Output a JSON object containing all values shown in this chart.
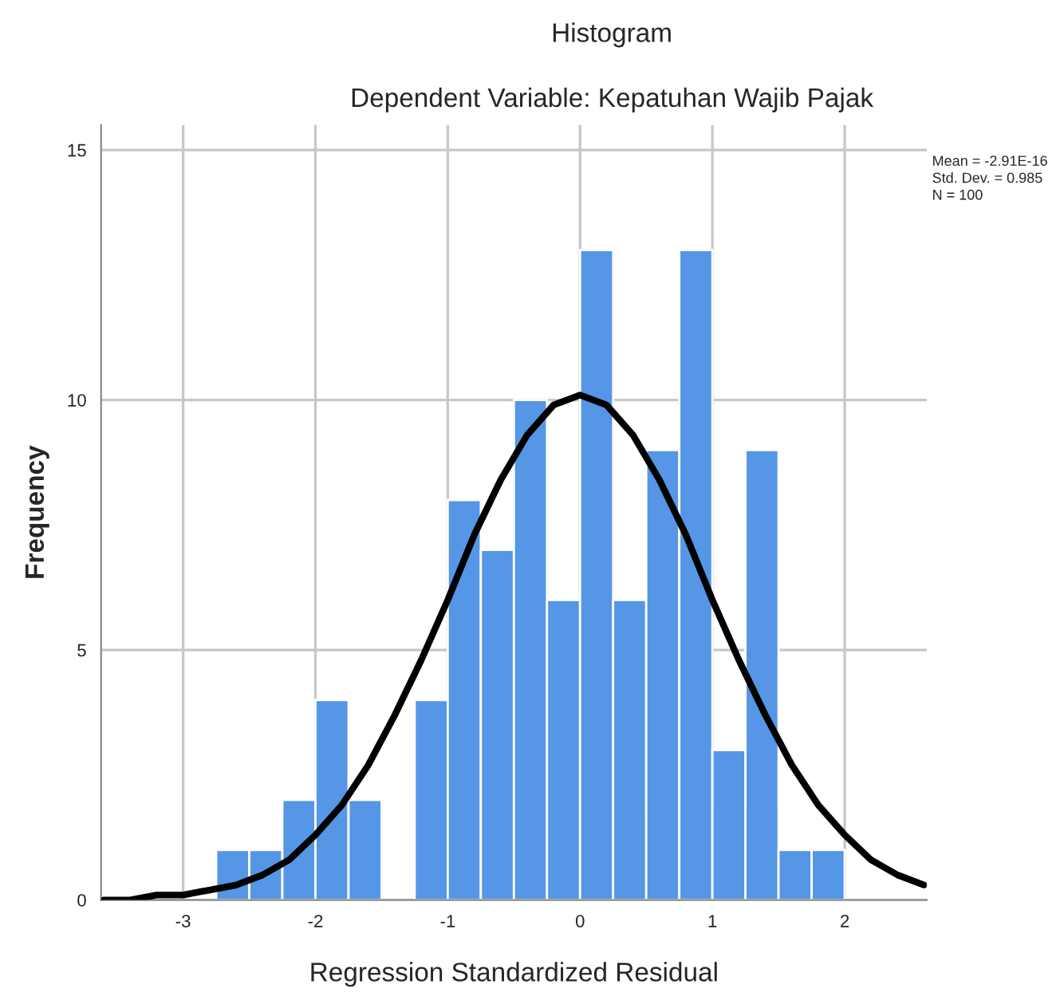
{
  "chart_data": {
    "type": "histogram",
    "title": "Histogram",
    "subtitle": "Dependent Variable: Kepatuhan Wajib Pajak",
    "xlabel": "Regression Standardized Residual",
    "ylabel": "Frequency",
    "bins": [
      -2.75,
      -2.5,
      -2.25,
      -2.0,
      -1.75,
      -1.5,
      -1.25,
      -1.0,
      -0.75,
      -0.5,
      -0.25,
      0.0,
      0.25,
      0.5,
      0.75,
      1.0,
      1.25,
      1.5,
      1.75,
      2.0
    ],
    "values": [
      1,
      1,
      2,
      4,
      2,
      0,
      4,
      8,
      7,
      10,
      6,
      13,
      6,
      9,
      13,
      3,
      9,
      1,
      1
    ],
    "color": "#5596e6",
    "series": [
      {
        "type": "line",
        "color": "#000000",
        "x": [
          -3.6,
          -3.4,
          -3.2,
          -3.0,
          -2.8,
          -2.6,
          -2.4,
          -2.2,
          -2.0,
          -1.8,
          -1.6,
          -1.4,
          -1.2,
          -1.0,
          -0.8,
          -0.6,
          -0.4,
          -0.2,
          0.0,
          0.2,
          0.4,
          0.6,
          0.8,
          1.0,
          1.2,
          1.4,
          1.6,
          1.8,
          2.0,
          2.2,
          2.4,
          2.6
        ],
        "values": [
          0.0,
          0.0,
          0.1,
          0.1,
          0.2,
          0.3,
          0.5,
          0.8,
          1.3,
          1.9,
          2.7,
          3.7,
          4.8,
          6.0,
          7.3,
          8.4,
          9.3,
          9.9,
          10.1,
          9.9,
          9.3,
          8.4,
          7.3,
          6.0,
          4.8,
          3.7,
          2.7,
          1.9,
          1.3,
          0.8,
          0.5,
          0.3
        ]
      }
    ],
    "xlim": [
      -3.62,
      2.62
    ],
    "ylim": [
      0,
      15.5
    ],
    "xticks": [
      -3,
      -2,
      -1,
      0,
      1,
      2
    ],
    "yticks": [
      0,
      5,
      10,
      15
    ],
    "grid": true,
    "annotations": [
      "Mean = -2.91E-16",
      "Std. Dev. = 0.985",
      "N = 100"
    ]
  }
}
